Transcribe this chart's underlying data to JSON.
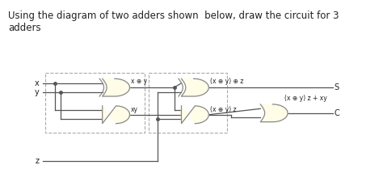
{
  "title": "Using the diagram of two adders shown  below, draw the circuit for 3\nadders",
  "bg_color": "#ffffff",
  "gate_fill": "#fffde8",
  "gate_edge": "#888888",
  "line_color": "#555555",
  "dash_color": "#aaaaaa",
  "text_color": "#222222",
  "labels": {
    "x": "x",
    "y": "y",
    "z": "z",
    "xor1_out": "x ⊕ y",
    "and1_out": "xy",
    "xor2_out": "(x ⊕ y) ⊕ z",
    "and2_out": "(x ⊕ y) z",
    "S_label": "S",
    "C_label": "C",
    "or_out": "(x ⊕ y) z + xy"
  }
}
